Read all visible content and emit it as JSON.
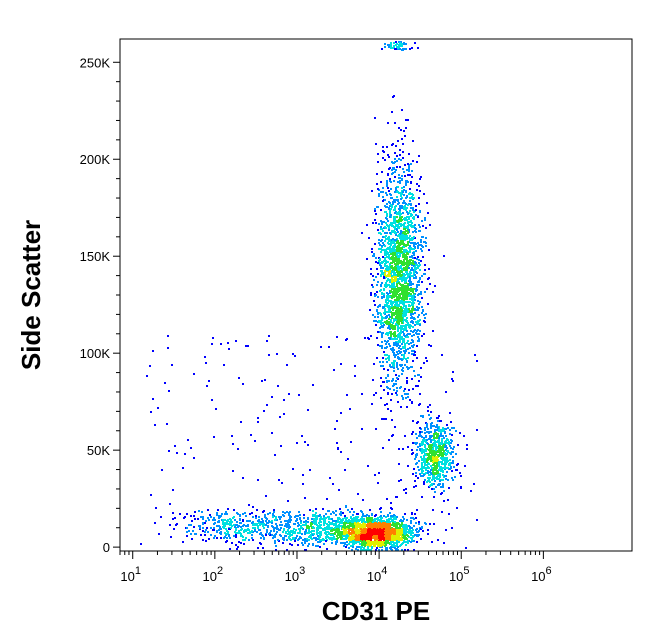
{
  "chart_data": {
    "type": "scatter",
    "style": "flow-cytometry pseudocolor density dot plot",
    "xlabel": "CD31 PE",
    "ylabel": "Side Scatter",
    "x_scale": "log",
    "xlim": [
      7,
      12000000
    ],
    "ylim": [
      -2000,
      262000
    ],
    "x_ticks": [
      {
        "value": 10,
        "base": "10",
        "exp": "1"
      },
      {
        "value": 100,
        "base": "10",
        "exp": "2"
      },
      {
        "value": 1000,
        "base": "10",
        "exp": "3"
      },
      {
        "value": 10000,
        "base": "10",
        "exp": "4"
      },
      {
        "value": 100000,
        "base": "10",
        "exp": "5"
      },
      {
        "value": 1000000,
        "base": "10",
        "exp": "6"
      }
    ],
    "y_ticks": [
      {
        "value": 0,
        "label": "0"
      },
      {
        "value": 50000,
        "label": "50K"
      },
      {
        "value": 100000,
        "label": "100K"
      },
      {
        "value": 150000,
        "label": "150K"
      },
      {
        "value": 200000,
        "label": "200K"
      },
      {
        "value": 250000,
        "label": "250K"
      }
    ],
    "density_colors": [
      "#0000ff",
      "#0090ff",
      "#00e0e0",
      "#30e030",
      "#e0f000",
      "#ff8000",
      "#ff0000"
    ],
    "populations": [
      {
        "name": "CD31-bright high-SSC population",
        "x_center": 17000,
        "y_center": 140000,
        "x_spread_log": 0.14,
        "y_spread": 28000,
        "fraction": 0.42
      },
      {
        "name": "CD31-bright mid-SSC population",
        "x_center": 45000,
        "y_center": 47000,
        "x_spread_log": 0.12,
        "y_spread": 9000,
        "fraction": 0.12
      },
      {
        "name": "CD31-positive low-SSC population",
        "x_center": 9000,
        "y_center": 8000,
        "x_spread_log": 0.22,
        "y_spread": 4000,
        "fraction": 0.28
      },
      {
        "name": "CD31-low low-SSC population",
        "x_center": 1800,
        "y_center": 10000,
        "x_spread_log": 0.45,
        "y_spread": 4500,
        "fraction": 0.13
      },
      {
        "name": "CD31-negative low-SSC population",
        "x_center": 150,
        "y_center": 11000,
        "x_spread_log": 0.3,
        "y_spread": 4000,
        "fraction": 0.05
      }
    ],
    "grid": false,
    "legend": "none"
  }
}
